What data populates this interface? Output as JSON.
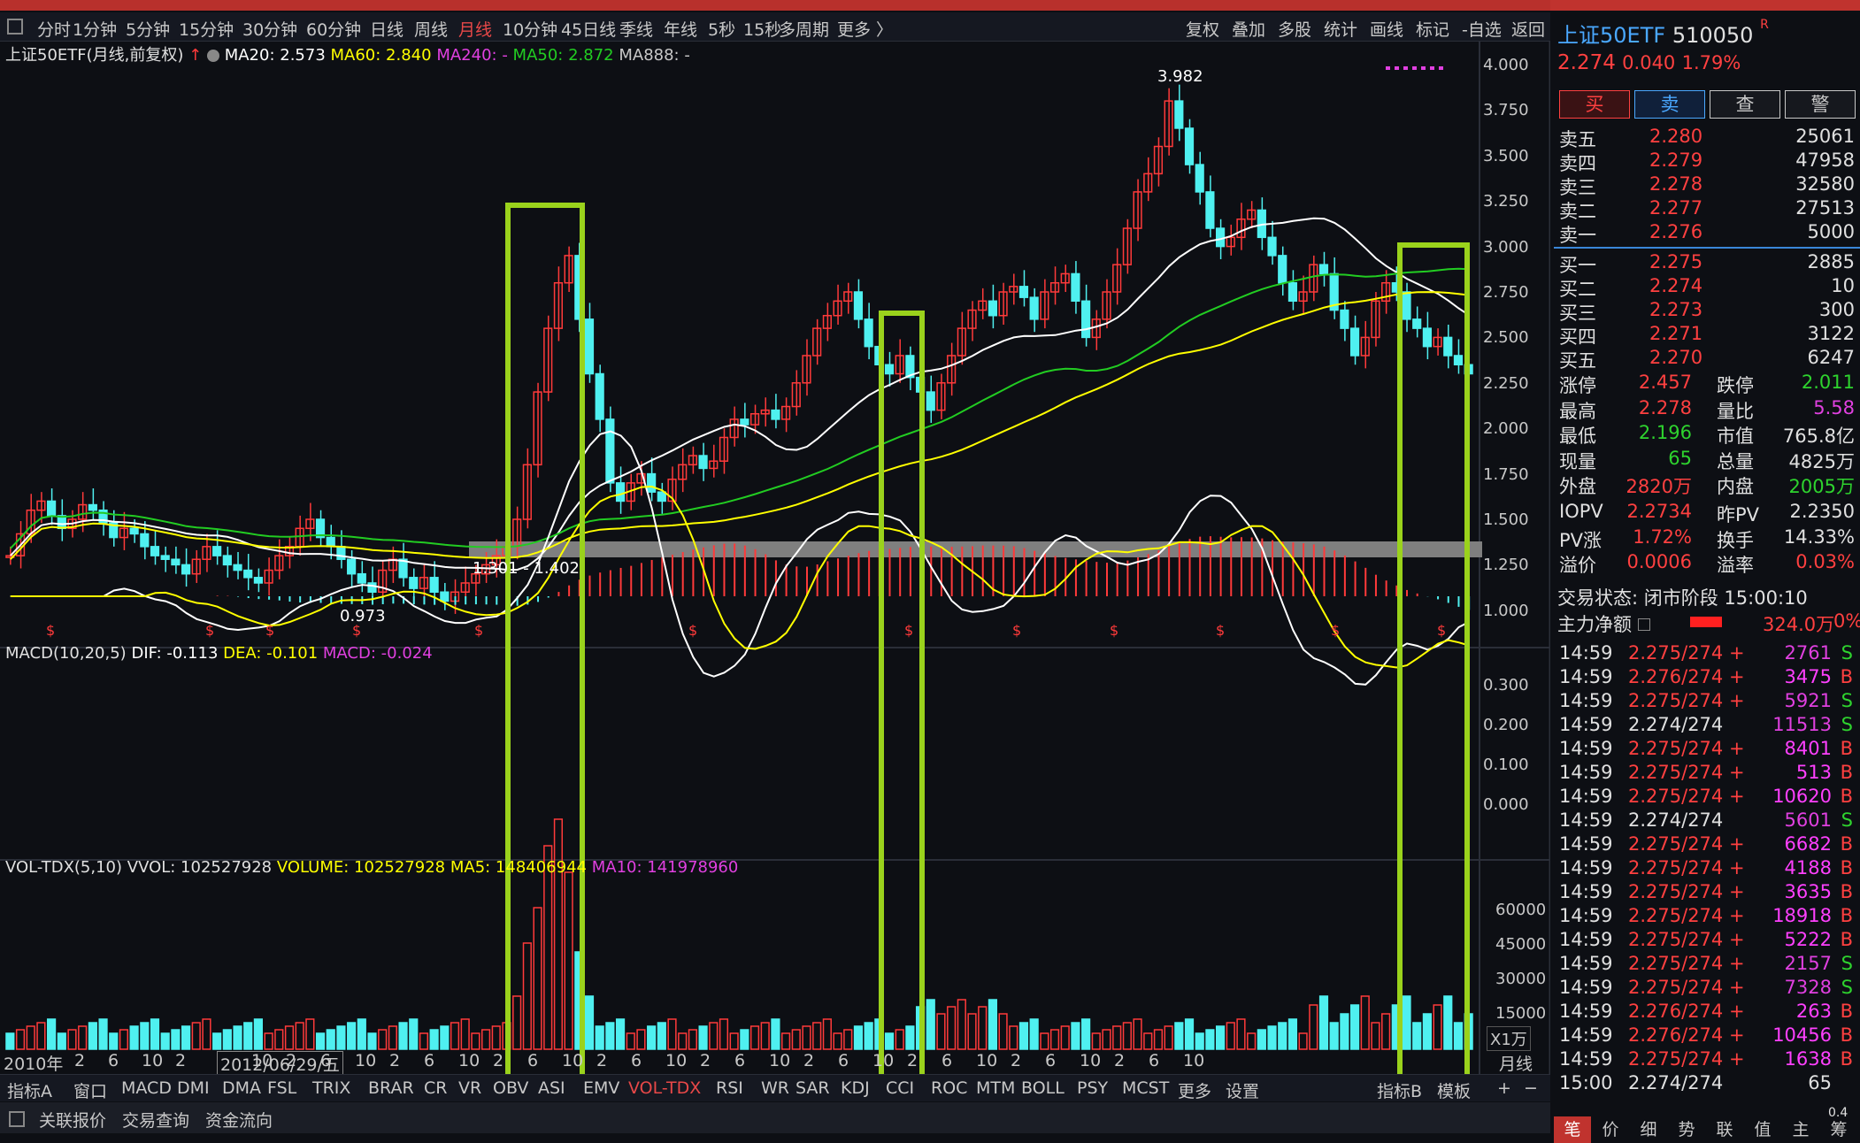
{
  "period_bar": {
    "items": [
      "分时",
      "1分钟",
      "5分钟",
      "15分钟",
      "30分钟",
      "60分钟",
      "日线",
      "周线",
      "月线",
      "10分钟",
      "45日线",
      "季线",
      "年线",
      "5秒",
      "15秒",
      "多周期",
      "更多 〉"
    ],
    "active": "月线",
    "right_items": [
      "复权",
      "叠加",
      "多股",
      "统计",
      "画线",
      "标记",
      "-自选",
      "返回"
    ]
  },
  "main_info": {
    "name": "上证50ETF(月线,前复权)",
    "ma20": "MA20: 2.573",
    "ma60": "MA60: 2.840",
    "ma240": "MA240: -",
    "ma50": "MA50: 2.872",
    "ma888": "MA888: -"
  },
  "price_tags": {
    "high": "3.982",
    "range": "1.301 - 1.402",
    "low": "0.973"
  },
  "y_axis_main": [
    "4.000",
    "3.750",
    "3.500",
    "3.250",
    "3.000",
    "2.750",
    "2.500",
    "2.250",
    "2.000",
    "1.750",
    "1.500",
    "1.250",
    "1.000"
  ],
  "macd_info": {
    "title": "MACD(10,20,5)",
    "dif": "DIF: -0.113",
    "dea": "DEA: -0.101",
    "macd": "MACD: -0.024"
  },
  "y_axis_macd": [
    "0.300",
    "0.200",
    "0.100",
    "0.000"
  ],
  "vol_info": {
    "title": "VOL-TDX(5,10)",
    "vvol": "VVOL: 102527928",
    "volume": "VOLUME: 102527928",
    "ma5": "MA5: 148406944",
    "ma10": "MA10: 141978960"
  },
  "y_axis_vol": [
    "60000",
    "45000",
    "30000",
    "15000"
  ],
  "vol_unit": "X1万",
  "x_axis": [
    "2010年",
    "2",
    "6",
    "10",
    "2",
    "2012/06/29/五",
    "10",
    "2",
    "6",
    "10",
    "2",
    "6",
    "10",
    "2",
    "6",
    "10",
    "2",
    "6",
    "10",
    "2",
    "6",
    "10",
    "2",
    "6",
    "10",
    "2",
    "6",
    "10",
    "2",
    "6",
    "10",
    "2",
    "6",
    "10"
  ],
  "x_axis_period": "月线",
  "indicator_tabs": [
    "指标A",
    "窗口",
    "MACD",
    "DMI",
    "DMA",
    "FSL",
    "TRIX",
    "BRAR",
    "CR",
    "VR",
    "OBV",
    "ASI",
    "EMV",
    "VOL-TDX",
    "RSI",
    "WR",
    "SAR",
    "KDJ",
    "CCI",
    "ROC",
    "MTM",
    "BOLL",
    "PSY",
    "MCST",
    "更多",
    "设置"
  ],
  "indicator_active": "VOL-TDX",
  "indicator_right": [
    "指标B",
    "模板",
    "+",
    "−"
  ],
  "bottom_bar": [
    "关联报价",
    "交易查询",
    "资金流向"
  ],
  "quote": {
    "name": "上证50ETF",
    "code": "510050",
    "r_mark": "R",
    "price": "2.274",
    "change": "0.040",
    "pct": "1.79%",
    "buttons": [
      "买",
      "卖",
      "查",
      "警"
    ],
    "asks": [
      {
        "label": "卖五",
        "price": "2.280",
        "vol": "25061"
      },
      {
        "label": "卖四",
        "price": "2.279",
        "vol": "47958"
      },
      {
        "label": "卖三",
        "price": "2.278",
        "vol": "32580"
      },
      {
        "label": "卖二",
        "price": "2.277",
        "vol": "27513"
      },
      {
        "label": "卖一",
        "price": "2.276",
        "vol": "5000"
      }
    ],
    "bids": [
      {
        "label": "买一",
        "price": "2.275",
        "vol": "2885"
      },
      {
        "label": "买二",
        "price": "2.274",
        "vol": "10"
      },
      {
        "label": "买三",
        "price": "2.273",
        "vol": "300"
      },
      {
        "label": "买四",
        "price": "2.271",
        "vol": "3122"
      },
      {
        "label": "买五",
        "price": "2.270",
        "vol": "6247"
      }
    ],
    "stats": [
      {
        "l1": "涨停",
        "v1": "2.457",
        "c1": "#ff4040",
        "l2": "跌停",
        "v2": "2.011",
        "c2": "#2ed32e"
      },
      {
        "l1": "最高",
        "v1": "2.278",
        "c1": "#ff4040",
        "l2": "量比",
        "v2": "5.58",
        "c2": "#e040e0"
      },
      {
        "l1": "最低",
        "v1": "2.196",
        "c1": "#2ed32e",
        "l2": "市值",
        "v2": "765.8亿",
        "c2": "#e0e0e0"
      },
      {
        "l1": "现量",
        "v1": "65",
        "c1": "#2ed32e",
        "l2": "总量",
        "v2": "4825万",
        "c2": "#e0e0e0"
      },
      {
        "l1": "外盘",
        "v1": "2820万",
        "c1": "#ff4040",
        "l2": "内盘",
        "v2": "2005万",
        "c2": "#2ed32e"
      }
    ],
    "iopv": [
      {
        "l1": "IOPV",
        "v1": "2.2734",
        "c1": "#ff4040",
        "l2": "昨PV",
        "v2": "2.2350",
        "c2": "#e0e0e0"
      },
      {
        "l1": "PV涨",
        "v1": "1.72%",
        "c1": "#ff4040",
        "l2": "换手",
        "v2": "14.33%",
        "c2": "#e0e0e0"
      },
      {
        "l1": "溢价",
        "v1": "0.0006",
        "c1": "#ff4040",
        "l2": "溢率",
        "v2": "0.03%",
        "c2": "#ff4040"
      }
    ],
    "trade_status": "交易状态: 闭市阶段 15:00:10",
    "main_flow_label": "主力净额",
    "main_flow_value": "324.0万",
    "main_flow_pct": "0%",
    "ticks": [
      {
        "t": "14:59",
        "p": "2.275/274 +",
        "v": "2761",
        "s": "S"
      },
      {
        "t": "14:59",
        "p": "2.276/274 +",
        "v": "3475",
        "s": "B"
      },
      {
        "t": "14:59",
        "p": "2.275/274 +",
        "v": "5921",
        "s": "S"
      },
      {
        "t": "14:59",
        "p": "2.274/274",
        "v": "11513",
        "s": "S"
      },
      {
        "t": "14:59",
        "p": "2.275/274 +",
        "v": "8401",
        "s": "B"
      },
      {
        "t": "14:59",
        "p": "2.275/274 +",
        "v": "513",
        "s": "B"
      },
      {
        "t": "14:59",
        "p": "2.275/274 +",
        "v": "10620",
        "s": "B"
      },
      {
        "t": "14:59",
        "p": "2.274/274",
        "v": "5601",
        "s": "S"
      },
      {
        "t": "14:59",
        "p": "2.275/274 +",
        "v": "6682",
        "s": "B"
      },
      {
        "t": "14:59",
        "p": "2.275/274 +",
        "v": "4188",
        "s": "B"
      },
      {
        "t": "14:59",
        "p": "2.275/274 +",
        "v": "3635",
        "s": "B"
      },
      {
        "t": "14:59",
        "p": "2.275/274 +",
        "v": "18918",
        "s": "B"
      },
      {
        "t": "14:59",
        "p": "2.275/274 +",
        "v": "5222",
        "s": "B"
      },
      {
        "t": "14:59",
        "p": "2.275/274 +",
        "v": "2157",
        "s": "S"
      },
      {
        "t": "14:59",
        "p": "2.275/274 +",
        "v": "7328",
        "s": "S"
      },
      {
        "t": "14:59",
        "p": "2.276/274 +",
        "v": "263",
        "s": "B"
      },
      {
        "t": "14:59",
        "p": "2.276/274 +",
        "v": "10456",
        "s": "B"
      },
      {
        "t": "14:59",
        "p": "2.275/274 +",
        "v": "1638",
        "s": "B"
      },
      {
        "t": "15:00",
        "p": "2.274/274",
        "v": "65",
        "s": ""
      }
    ],
    "tabs": [
      "笔",
      "价",
      "细",
      "势",
      "联",
      "值",
      "主",
      "筹"
    ],
    "tab_active": "笔",
    "corner_value": "0.4"
  },
  "colors": {
    "up": "#ff3a3a",
    "down": "#4ff0f0",
    "ma20": "#ffffff",
    "ma60": "#ffff00",
    "ma50": "#22cc22",
    "highlight": "#9ad21c"
  }
}
